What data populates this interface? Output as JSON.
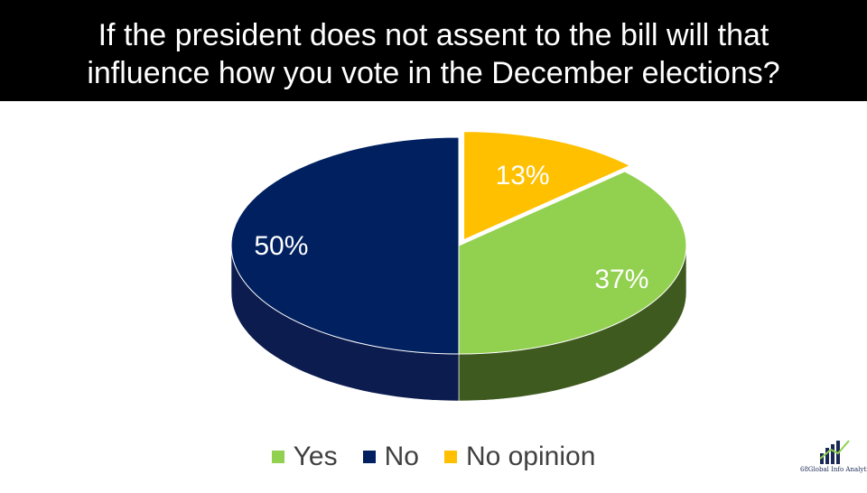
{
  "title": {
    "line1": "If the president does not assent to the bill will that",
    "line2": "influence how you vote in the December elections?"
  },
  "chart_data": {
    "type": "pie",
    "style": "3d",
    "start_angle_deg": 0,
    "slices": [
      {
        "label": "No opinion",
        "value": 13,
        "display": "13%",
        "color": "#ffc000",
        "exploded": true
      },
      {
        "label": "Yes",
        "value": 37,
        "display": "37%",
        "color": "#92d050",
        "side_color": "#3f5a1f"
      },
      {
        "label": "No",
        "value": 50,
        "display": "50%",
        "color": "#002060",
        "side_color": "#0d1c4f"
      }
    ],
    "legend_position": "bottom",
    "legend": [
      {
        "label": "Yes",
        "color": "#92d050"
      },
      {
        "label": "No",
        "color": "#002060"
      },
      {
        "label": "No opinion",
        "color": "#ffc000"
      }
    ]
  },
  "footer": {
    "page_number": "68",
    "logo_text": "Global Info Analytics"
  }
}
